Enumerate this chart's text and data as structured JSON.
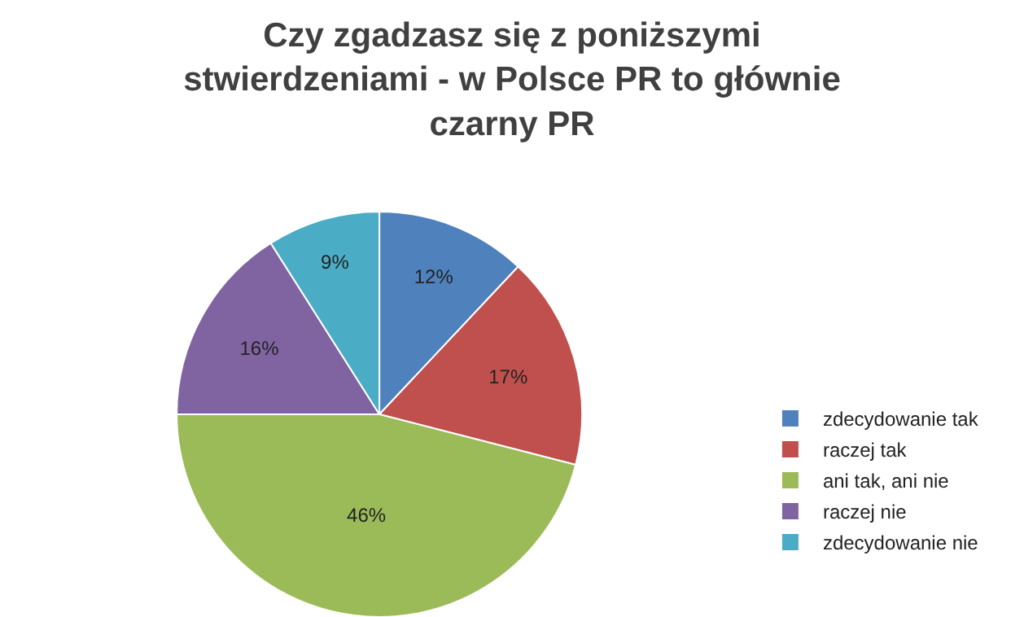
{
  "chart_data": {
    "type": "pie",
    "title": "Czy zgadzasz się z poniższymi\nstwierdzeniami - w Polsce PR to głównie\nczarny PR",
    "categories": [
      "zdecydowanie tak",
      "raczej tak",
      "ani tak, ani nie",
      "raczej nie",
      "zdecydowanie nie"
    ],
    "values": [
      12,
      17,
      46,
      16,
      9
    ],
    "value_labels": [
      "12%",
      "17%",
      "46%",
      "16%",
      "9%"
    ],
    "colors": [
      "#4f81bd",
      "#c0504d",
      "#9bbb59",
      "#8064a2",
      "#4bacc6"
    ],
    "legend": "right"
  }
}
